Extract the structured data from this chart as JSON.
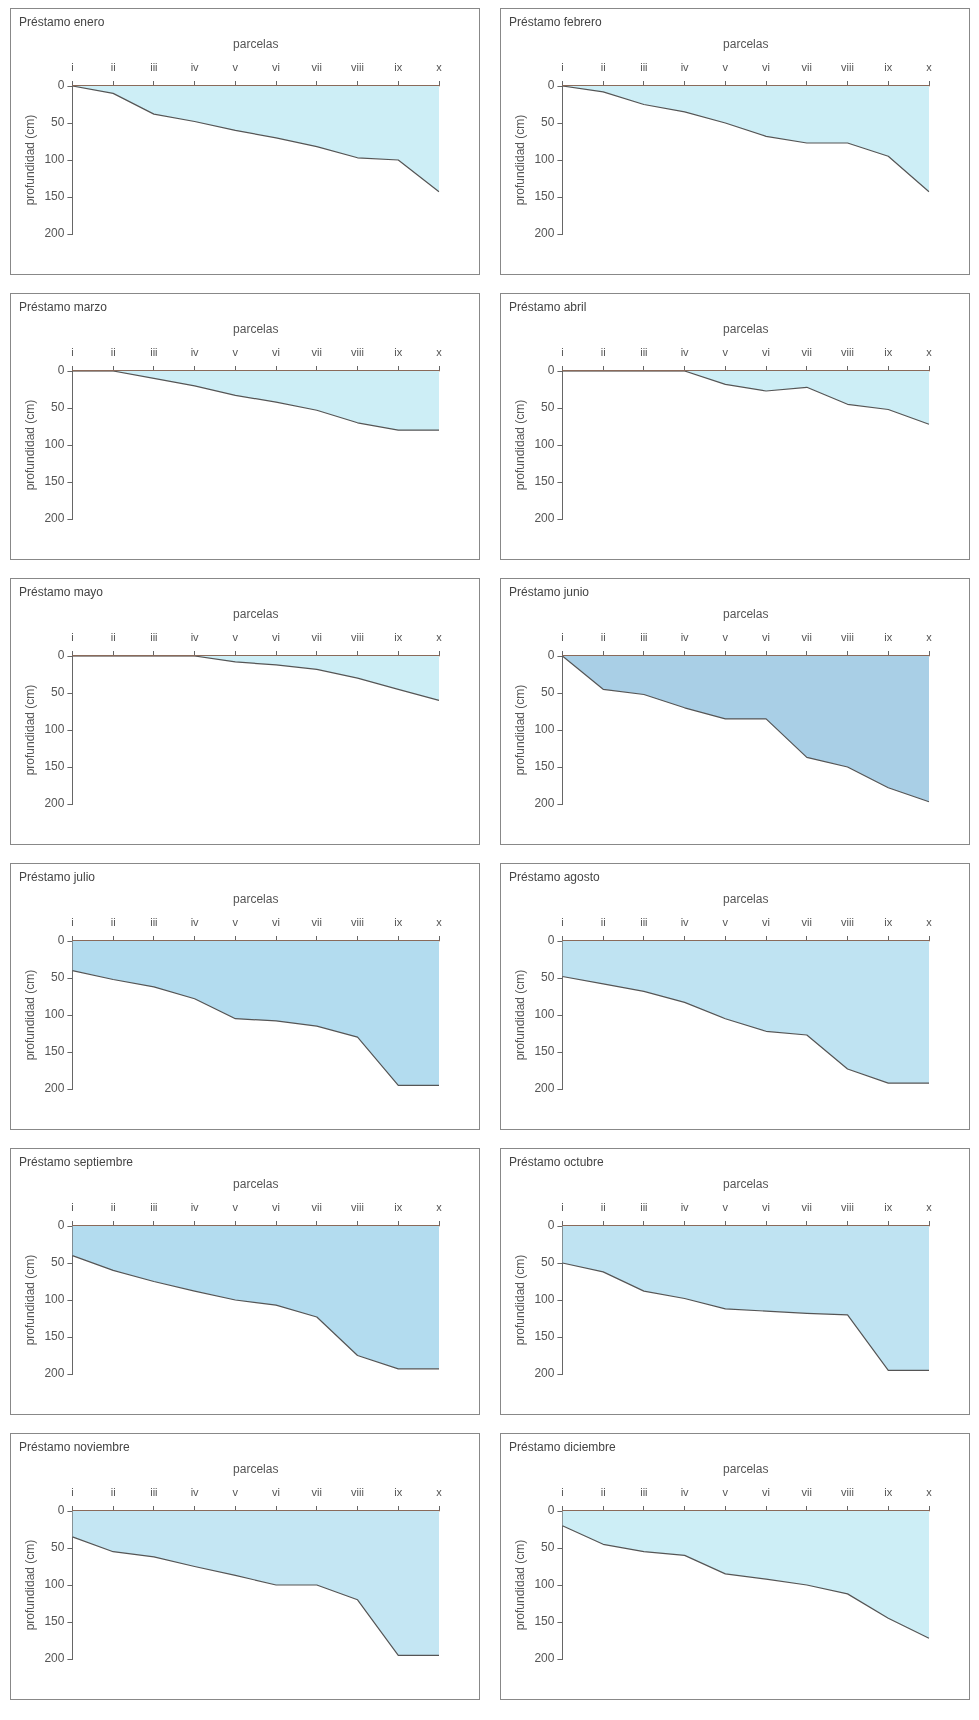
{
  "chart_data": [
    {
      "type": "area",
      "title": "Préstamo enero",
      "xlabel": "parcelas",
      "ylabel": "profundidad (cm)",
      "categories": [
        "i",
        "ii",
        "iii",
        "iv",
        "v",
        "vi",
        "vii",
        "viii",
        "ix",
        "x"
      ],
      "ylim": [
        200,
        0
      ],
      "yticks": [
        0,
        50,
        100,
        150,
        200
      ],
      "grid": false,
      "legend": false,
      "series": [
        {
          "color": "#cdeef6",
          "values": [
            0,
            10,
            38,
            48,
            60,
            70,
            82,
            97,
            100,
            143
          ]
        }
      ]
    },
    {
      "type": "area",
      "title": "Préstamo febrero",
      "xlabel": "parcelas",
      "ylabel": "profundidad (cm)",
      "categories": [
        "i",
        "ii",
        "iii",
        "iv",
        "v",
        "vi",
        "vii",
        "viii",
        "ix",
        "x"
      ],
      "ylim": [
        200,
        0
      ],
      "yticks": [
        0,
        50,
        100,
        150,
        200
      ],
      "grid": false,
      "legend": false,
      "series": [
        {
          "color": "#cdeef6",
          "values": [
            0,
            8,
            25,
            35,
            50,
            68,
            77,
            77,
            95,
            143
          ]
        }
      ]
    },
    {
      "type": "area",
      "title": "Préstamo marzo",
      "xlabel": "parcelas",
      "ylabel": "profundidad (cm)",
      "categories": [
        "i",
        "ii",
        "iii",
        "iv",
        "v",
        "vi",
        "vii",
        "viii",
        "ix",
        "x"
      ],
      "ylim": [
        200,
        0
      ],
      "yticks": [
        0,
        50,
        100,
        150,
        200
      ],
      "grid": false,
      "legend": false,
      "series": [
        {
          "color": "#cdeef6",
          "values": [
            0,
            0,
            10,
            20,
            33,
            42,
            53,
            70,
            80,
            80
          ]
        }
      ]
    },
    {
      "type": "area",
      "title": "Préstamo abril",
      "xlabel": "parcelas",
      "ylabel": "profundidad (cm)",
      "categories": [
        "i",
        "ii",
        "iii",
        "iv",
        "v",
        "vi",
        "vii",
        "viii",
        "ix",
        "x"
      ],
      "ylim": [
        200,
        0
      ],
      "yticks": [
        0,
        50,
        100,
        150,
        200
      ],
      "grid": false,
      "legend": false,
      "series": [
        {
          "color": "#cdeef6",
          "values": [
            0,
            0,
            0,
            0,
            18,
            27,
            22,
            45,
            52,
            72
          ]
        }
      ]
    },
    {
      "type": "area",
      "title": "Préstamo mayo",
      "xlabel": "parcelas",
      "ylabel": "profundidad (cm)",
      "categories": [
        "i",
        "ii",
        "iii",
        "iv",
        "v",
        "vi",
        "vii",
        "viii",
        "ix",
        "x"
      ],
      "ylim": [
        200,
        0
      ],
      "yticks": [
        0,
        50,
        100,
        150,
        200
      ],
      "grid": false,
      "legend": false,
      "series": [
        {
          "color": "#cdeef6",
          "values": [
            0,
            0,
            0,
            0,
            8,
            12,
            18,
            30,
            45,
            60
          ]
        }
      ]
    },
    {
      "type": "area",
      "title": "Préstamo junio",
      "xlabel": "parcelas",
      "ylabel": "profundidad (cm)",
      "categories": [
        "i",
        "ii",
        "iii",
        "iv",
        "v",
        "vi",
        "vii",
        "viii",
        "ix",
        "x"
      ],
      "ylim": [
        200,
        0
      ],
      "yticks": [
        0,
        50,
        100,
        150,
        200
      ],
      "grid": false,
      "legend": false,
      "series": [
        {
          "color": "#a9cfe6",
          "values": [
            0,
            45,
            52,
            70,
            85,
            85,
            137,
            150,
            178,
            197
          ]
        }
      ]
    },
    {
      "type": "area",
      "title": "Préstamo julio",
      "xlabel": "parcelas",
      "ylabel": "profundidad (cm)",
      "categories": [
        "i",
        "ii",
        "iii",
        "iv",
        "v",
        "vi",
        "vii",
        "viii",
        "ix",
        "x"
      ],
      "ylim": [
        200,
        0
      ],
      "yticks": [
        0,
        50,
        100,
        150,
        200
      ],
      "grid": false,
      "legend": false,
      "series": [
        {
          "color": "#b3dcef",
          "values": [
            40,
            52,
            62,
            78,
            105,
            108,
            115,
            130,
            195,
            195
          ]
        }
      ]
    },
    {
      "type": "area",
      "title": "Préstamo agosto",
      "xlabel": "parcelas",
      "ylabel": "profundidad (cm)",
      "categories": [
        "i",
        "ii",
        "iii",
        "iv",
        "v",
        "vi",
        "vii",
        "viii",
        "ix",
        "x"
      ],
      "ylim": [
        200,
        0
      ],
      "yticks": [
        0,
        50,
        100,
        150,
        200
      ],
      "grid": false,
      "legend": false,
      "series": [
        {
          "color": "#bfe3f2",
          "values": [
            48,
            58,
            68,
            83,
            105,
            122,
            127,
            173,
            192,
            192
          ]
        }
      ]
    },
    {
      "type": "area",
      "title": "Préstamo septiembre",
      "xlabel": "parcelas",
      "ylabel": "profundidad (cm)",
      "categories": [
        "i",
        "ii",
        "iii",
        "iv",
        "v",
        "vi",
        "vii",
        "viii",
        "ix",
        "x"
      ],
      "ylim": [
        200,
        0
      ],
      "yticks": [
        0,
        50,
        100,
        150,
        200
      ],
      "grid": false,
      "legend": false,
      "series": [
        {
          "color": "#b3dcef",
          "values": [
            40,
            60,
            75,
            88,
            100,
            107,
            123,
            175,
            193,
            193
          ]
        }
      ]
    },
    {
      "type": "area",
      "title": "Préstamo octubre",
      "xlabel": "parcelas",
      "ylabel": "profundidad (cm)",
      "categories": [
        "i",
        "ii",
        "iii",
        "iv",
        "v",
        "vi",
        "vii",
        "viii",
        "ix",
        "x"
      ],
      "ylim": [
        200,
        0
      ],
      "yticks": [
        0,
        50,
        100,
        150,
        200
      ],
      "grid": false,
      "legend": false,
      "series": [
        {
          "color": "#bfe3f2",
          "values": [
            50,
            62,
            88,
            98,
            112,
            115,
            118,
            120,
            195,
            195
          ]
        }
      ]
    },
    {
      "type": "area",
      "title": "Préstamo noviembre",
      "xlabel": "parcelas",
      "ylabel": "profundidad (cm)",
      "categories": [
        "i",
        "ii",
        "iii",
        "iv",
        "v",
        "vi",
        "vii",
        "viii",
        "ix",
        "x"
      ],
      "ylim": [
        200,
        0
      ],
      "yticks": [
        0,
        50,
        100,
        150,
        200
      ],
      "grid": false,
      "legend": false,
      "series": [
        {
          "color": "#c4e6f3",
          "values": [
            35,
            55,
            62,
            75,
            87,
            100,
            100,
            120,
            195,
            195
          ]
        }
      ]
    },
    {
      "type": "area",
      "title": "Préstamo diciembre",
      "xlabel": "parcelas",
      "ylabel": "profundidad (cm)",
      "categories": [
        "i",
        "ii",
        "iii",
        "iv",
        "v",
        "vi",
        "vii",
        "viii",
        "ix",
        "x"
      ],
      "ylim": [
        200,
        0
      ],
      "yticks": [
        0,
        50,
        100,
        150,
        200
      ],
      "grid": false,
      "legend": false,
      "series": [
        {
          "color": "#cdeef6",
          "values": [
            20,
            45,
            55,
            60,
            85,
            92,
            100,
            112,
            145,
            172
          ]
        }
      ]
    }
  ]
}
